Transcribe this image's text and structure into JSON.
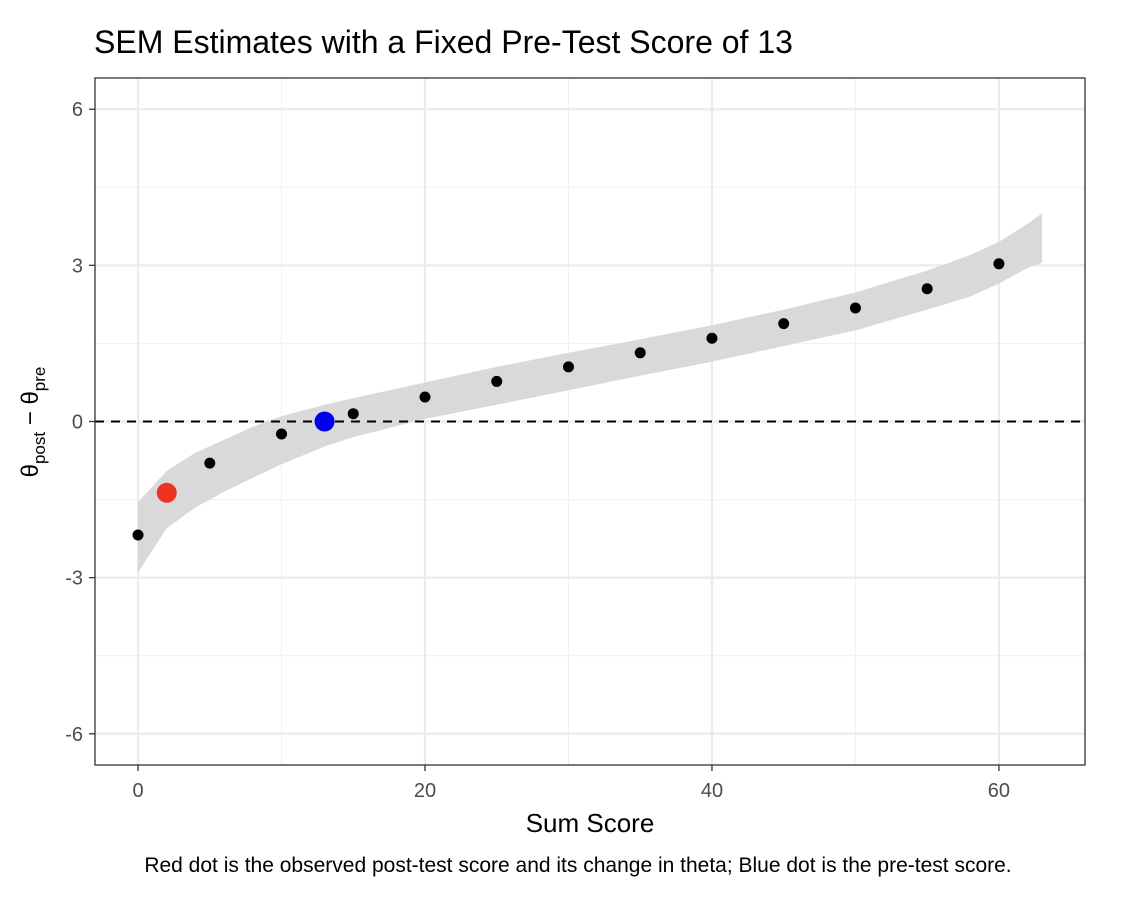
{
  "chart_data": {
    "type": "scatter",
    "title": "SEM Estimates with a Fixed Pre-Test Score of 13",
    "xlabel": "Sum Score",
    "ylabel": {
      "theta": "θ",
      "post_sub": "post",
      "minus": " − ",
      "pre_sub": "pre"
    },
    "caption": "Red dot is the observed post-test score and its change in theta; Blue dot is the pre-test score.",
    "xlim": [
      -3,
      66
    ],
    "ylim": [
      -6.6,
      6.6
    ],
    "x_ticks": [
      0,
      20,
      40,
      60
    ],
    "x_tick_labels": [
      "0",
      "20",
      "40",
      "60"
    ],
    "y_ticks": [
      -6,
      -3,
      0,
      3,
      6
    ],
    "y_tick_labels": [
      "-6",
      "-3",
      "0",
      "3",
      "6"
    ],
    "grid": true,
    "reference_line": {
      "y": 0,
      "style": "dashed",
      "color": "#000000"
    },
    "band": {
      "color": "#d9d9d9",
      "x": [
        0,
        2,
        4,
        6,
        8,
        10,
        13,
        15,
        20,
        25,
        30,
        35,
        40,
        45,
        50,
        55,
        58,
        60,
        62,
        63
      ],
      "lower": [
        -2.9,
        -2.05,
        -1.65,
        -1.35,
        -1.08,
        -0.82,
        -0.48,
        -0.3,
        0.05,
        0.32,
        0.6,
        0.88,
        1.15,
        1.45,
        1.75,
        2.15,
        2.4,
        2.65,
        2.95,
        3.05
      ],
      "upper": [
        -1.55,
        -0.95,
        -0.6,
        -0.35,
        -0.1,
        0.1,
        0.32,
        0.45,
        0.75,
        1.05,
        1.32,
        1.58,
        1.85,
        2.15,
        2.48,
        2.9,
        3.2,
        3.45,
        3.8,
        4.0
      ]
    },
    "series": [
      {
        "color": "#000000",
        "size": "small",
        "x": [
          0,
          5,
          10,
          15,
          20,
          25,
          30,
          35,
          40,
          45,
          50,
          55,
          60
        ],
        "y": [
          -2.18,
          -0.8,
          -0.24,
          0.15,
          0.47,
          0.77,
          1.05,
          1.32,
          1.6,
          1.88,
          2.18,
          2.55,
          3.03
        ]
      },
      {
        "color": "#ee3323",
        "size": "large",
        "x": [
          2
        ],
        "y": [
          -1.37
        ]
      },
      {
        "color": "#0000ee",
        "size": "large",
        "x": [
          13
        ],
        "y": [
          0
        ]
      }
    ]
  }
}
